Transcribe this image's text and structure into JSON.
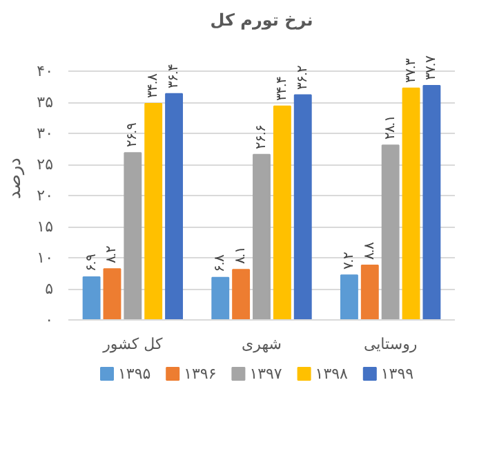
{
  "chart_data": {
    "type": "bar",
    "title": "نرخ تورم کل",
    "ylabel": "درصد",
    "categories": [
      "کل کشور",
      "شهری",
      "روستایی"
    ],
    "series": [
      {
        "name": "۱۳۹۵",
        "color": "#5b9bd5",
        "values": [
          6.9,
          6.8,
          7.2
        ],
        "value_labels": [
          "۶.۹",
          "۶.۸",
          "۷.۲"
        ]
      },
      {
        "name": "۱۳۹۶",
        "color": "#ed7d31",
        "values": [
          8.2,
          8.1,
          8.8
        ],
        "value_labels": [
          "۸.۲",
          "۸.۱",
          "۸.۸"
        ]
      },
      {
        "name": "۱۳۹۷",
        "color": "#a5a5a5",
        "values": [
          26.9,
          26.6,
          28.1
        ],
        "value_labels": [
          "۲۶.۹",
          "۲۶.۶",
          "۲۸.۱"
        ]
      },
      {
        "name": "۱۳۹۸",
        "color": "#ffc000",
        "values": [
          34.8,
          34.4,
          37.3
        ],
        "value_labels": [
          "۳۴.۸",
          "۳۴.۴",
          "۳۷.۳"
        ]
      },
      {
        "name": "۱۳۹۹",
        "color": "#4472c4",
        "values": [
          36.4,
          36.2,
          37.7
        ],
        "value_labels": [
          "۳۶.۴",
          "۳۶.۲",
          "۳۷.۷"
        ]
      }
    ],
    "ylim": [
      0,
      40
    ],
    "yticks": [
      {
        "value": 0,
        "label": "۰"
      },
      {
        "value": 5,
        "label": "۵"
      },
      {
        "value": 10,
        "label": "۱۰"
      },
      {
        "value": 15,
        "label": "۱۵"
      },
      {
        "value": 20,
        "label": "۲۰"
      },
      {
        "value": 25,
        "label": "۲۵"
      },
      {
        "value": 30,
        "label": "۳۰"
      },
      {
        "value": 35,
        "label": "۳۵"
      },
      {
        "value": 40,
        "label": "۴۰"
      }
    ],
    "grid": "y",
    "legend": "bottom"
  }
}
